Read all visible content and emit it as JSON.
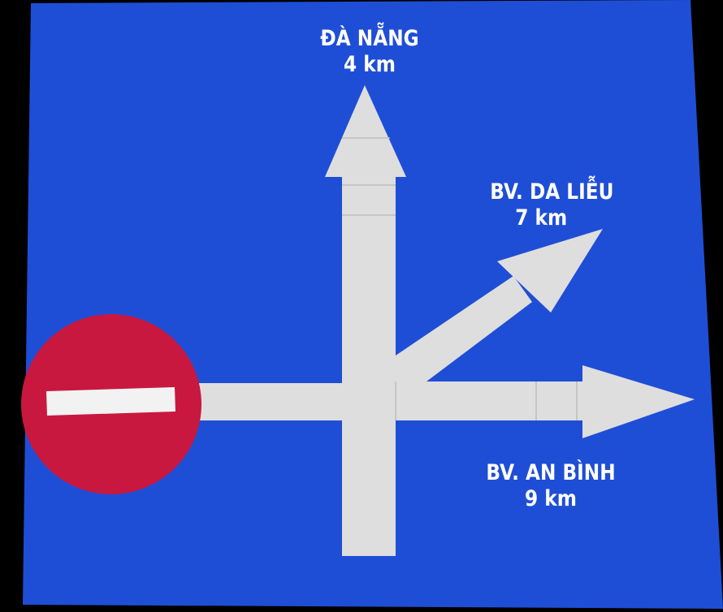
{
  "sign": {
    "background_color": "#1f4ed6",
    "arrow_color": "#dedede",
    "no_entry_color": "#c8183f",
    "no_entry_symbol": "no-entry-icon"
  },
  "destinations": {
    "straight": {
      "name": "ĐÀ NẴNG",
      "distance": "4 km"
    },
    "diagonal": {
      "name": "BV. DA LIỄU",
      "distance": "7 km"
    },
    "right": {
      "name": "BV. AN BÌNH",
      "distance": "9 km"
    }
  }
}
